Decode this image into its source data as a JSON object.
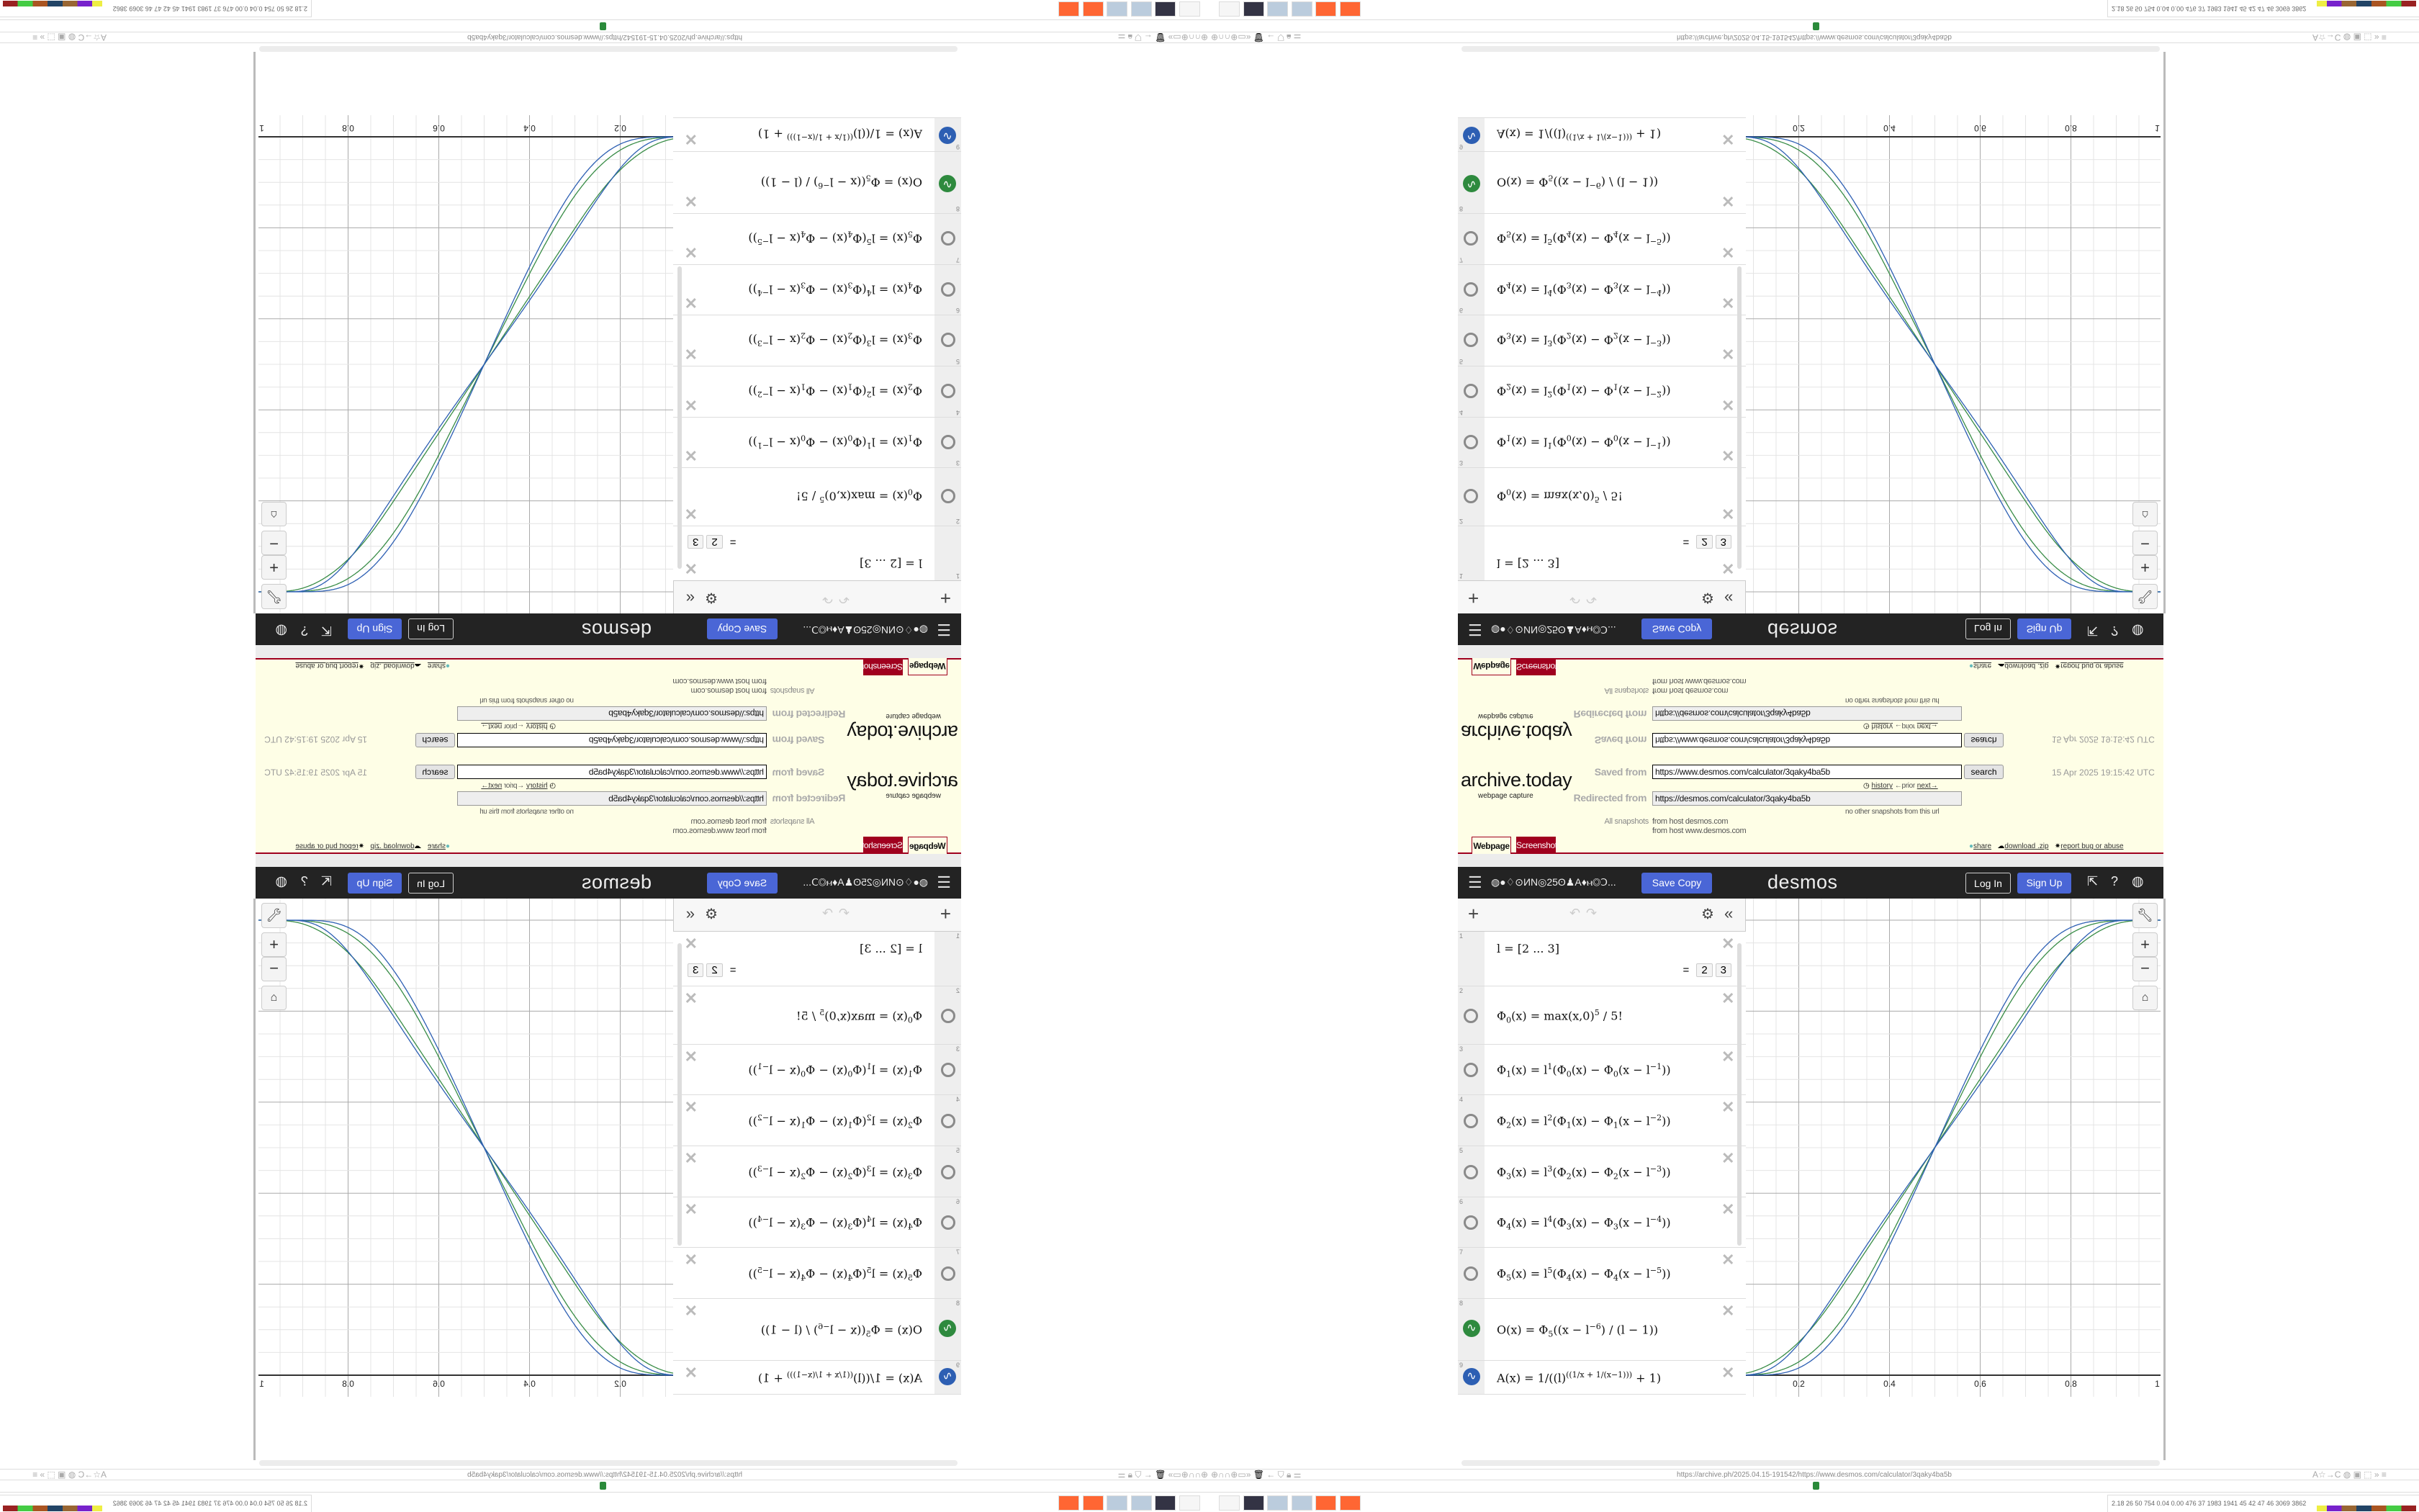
{
  "archive": {
    "logo": "archive.today",
    "logo_sub": "webpage capture",
    "saved_from_label": "Saved from",
    "saved_from_url": "https://www.desmos.com/calculator/3qaky4ba5b",
    "search_label": "search",
    "timestamp": "15 Apr 2025 19:15:42 UTC",
    "history": "history",
    "prior": "←prior",
    "next": "next→",
    "redirected_label": "Redirected from",
    "redirected_url": "https://desmos.com/calculator/3qaky4ba5b",
    "no_other": "no other snapshots from this url",
    "all_snapshots_label": "All snapshots",
    "from_host_1": "from host desmos.com",
    "from_host_2": "from host www.desmos.com",
    "tab_webpage": "Webpage",
    "tab_screenshot": "Screenshot",
    "share": "share",
    "download": "download .zip",
    "report": "report bug or abuse",
    "accent": "#a0001e"
  },
  "desmos": {
    "graph_title": "◍●♢⊙ИN◎25ʘ♟A♦ⲙ◎Ↄ...",
    "save_copy": "Save Copy",
    "logo": "desmos",
    "log_in": "Log In",
    "sign_up": "Sign Up",
    "accent": "#4a66d6",
    "expressions": [
      {
        "n": "1",
        "icon": "none",
        "parts": [
          [
            "t",
            "l = [2 ... 3]"
          ]
        ],
        "result": [
          "=",
          "2",
          "3"
        ]
      },
      {
        "n": "2",
        "icon": "hidden",
        "parts": [
          [
            "t",
            "Φ"
          ],
          [
            "sub",
            "0"
          ],
          [
            "t",
            "(x) = max(x,0)"
          ],
          [
            "sup",
            "5"
          ],
          [
            "t",
            " / 5!"
          ]
        ]
      },
      {
        "n": "3",
        "icon": "hidden",
        "parts": [
          [
            "t",
            "Φ"
          ],
          [
            "sub",
            "1"
          ],
          [
            "t",
            "(x) = l"
          ],
          [
            "sup",
            "1"
          ],
          [
            "t",
            "(Φ"
          ],
          [
            "sub",
            "0"
          ],
          [
            "t",
            "(x) − Φ"
          ],
          [
            "sub",
            "0"
          ],
          [
            "t",
            "(x − l"
          ],
          [
            "sup",
            "−1"
          ],
          [
            "t",
            "))"
          ]
        ]
      },
      {
        "n": "4",
        "icon": "hidden",
        "parts": [
          [
            "t",
            "Φ"
          ],
          [
            "sub",
            "2"
          ],
          [
            "t",
            "(x) = l"
          ],
          [
            "sup",
            "2"
          ],
          [
            "t",
            "(Φ"
          ],
          [
            "sub",
            "1"
          ],
          [
            "t",
            "(x) − Φ"
          ],
          [
            "sub",
            "1"
          ],
          [
            "t",
            "(x − l"
          ],
          [
            "sup",
            "−2"
          ],
          [
            "t",
            "))"
          ]
        ]
      },
      {
        "n": "5",
        "icon": "hidden",
        "parts": [
          [
            "t",
            "Φ"
          ],
          [
            "sub",
            "3"
          ],
          [
            "t",
            "(x) = l"
          ],
          [
            "sup",
            "3"
          ],
          [
            "t",
            "(Φ"
          ],
          [
            "sub",
            "2"
          ],
          [
            "t",
            "(x) − Φ"
          ],
          [
            "sub",
            "2"
          ],
          [
            "t",
            "(x − l"
          ],
          [
            "sup",
            "−3"
          ],
          [
            "t",
            "))"
          ]
        ]
      },
      {
        "n": "6",
        "icon": "hidden",
        "parts": [
          [
            "t",
            "Φ"
          ],
          [
            "sub",
            "4"
          ],
          [
            "t",
            "(x) = l"
          ],
          [
            "sup",
            "4"
          ],
          [
            "t",
            "(Φ"
          ],
          [
            "sub",
            "3"
          ],
          [
            "t",
            "(x) − Φ"
          ],
          [
            "sub",
            "3"
          ],
          [
            "t",
            "(x − l"
          ],
          [
            "sup",
            "−4"
          ],
          [
            "t",
            "))"
          ]
        ]
      },
      {
        "n": "7",
        "icon": "hidden",
        "parts": [
          [
            "t",
            "Φ"
          ],
          [
            "sub",
            "5"
          ],
          [
            "t",
            "(x) = l"
          ],
          [
            "sup",
            "5"
          ],
          [
            "t",
            "(Φ"
          ],
          [
            "sub",
            "4"
          ],
          [
            "t",
            "(x) − Φ"
          ],
          [
            "sub",
            "4"
          ],
          [
            "t",
            "(x − l"
          ],
          [
            "sup",
            "−5"
          ],
          [
            "t",
            "))"
          ]
        ]
      },
      {
        "n": "8",
        "icon": "green",
        "parts": [
          [
            "t",
            "O(x) = Φ"
          ],
          [
            "sub",
            "5"
          ],
          [
            "t",
            "((x − l"
          ],
          [
            "sup",
            "−6"
          ],
          [
            "t",
            ") / (l − 1))"
          ]
        ]
      },
      {
        "n": "9",
        "icon": "blue",
        "parts": [
          [
            "t",
            "A(x) = 1/((l)"
          ],
          [
            "sup",
            "((1/x + 1/(x−1)))"
          ],
          [
            "t",
            " + 1)"
          ]
        ]
      }
    ],
    "graph": {
      "x_ticks": [
        "0.2",
        "0.4",
        "0.6",
        "0.8",
        "1"
      ],
      "l_values": [
        2,
        3
      ],
      "series": [
        {
          "expr": "O(x)",
          "color": "#388c46"
        },
        {
          "expr": "A(x)",
          "color": "#2d5fb3"
        }
      ]
    }
  },
  "browser": {
    "url": "https://archive.ph/2025.04.15-191542/https://www.desmos.com/calculator/3qaky4ba5b",
    "tray": "2.18  26  50  754 0.04 0.00 476  37  1983 1941  45  42  47  46  3069 3862"
  }
}
